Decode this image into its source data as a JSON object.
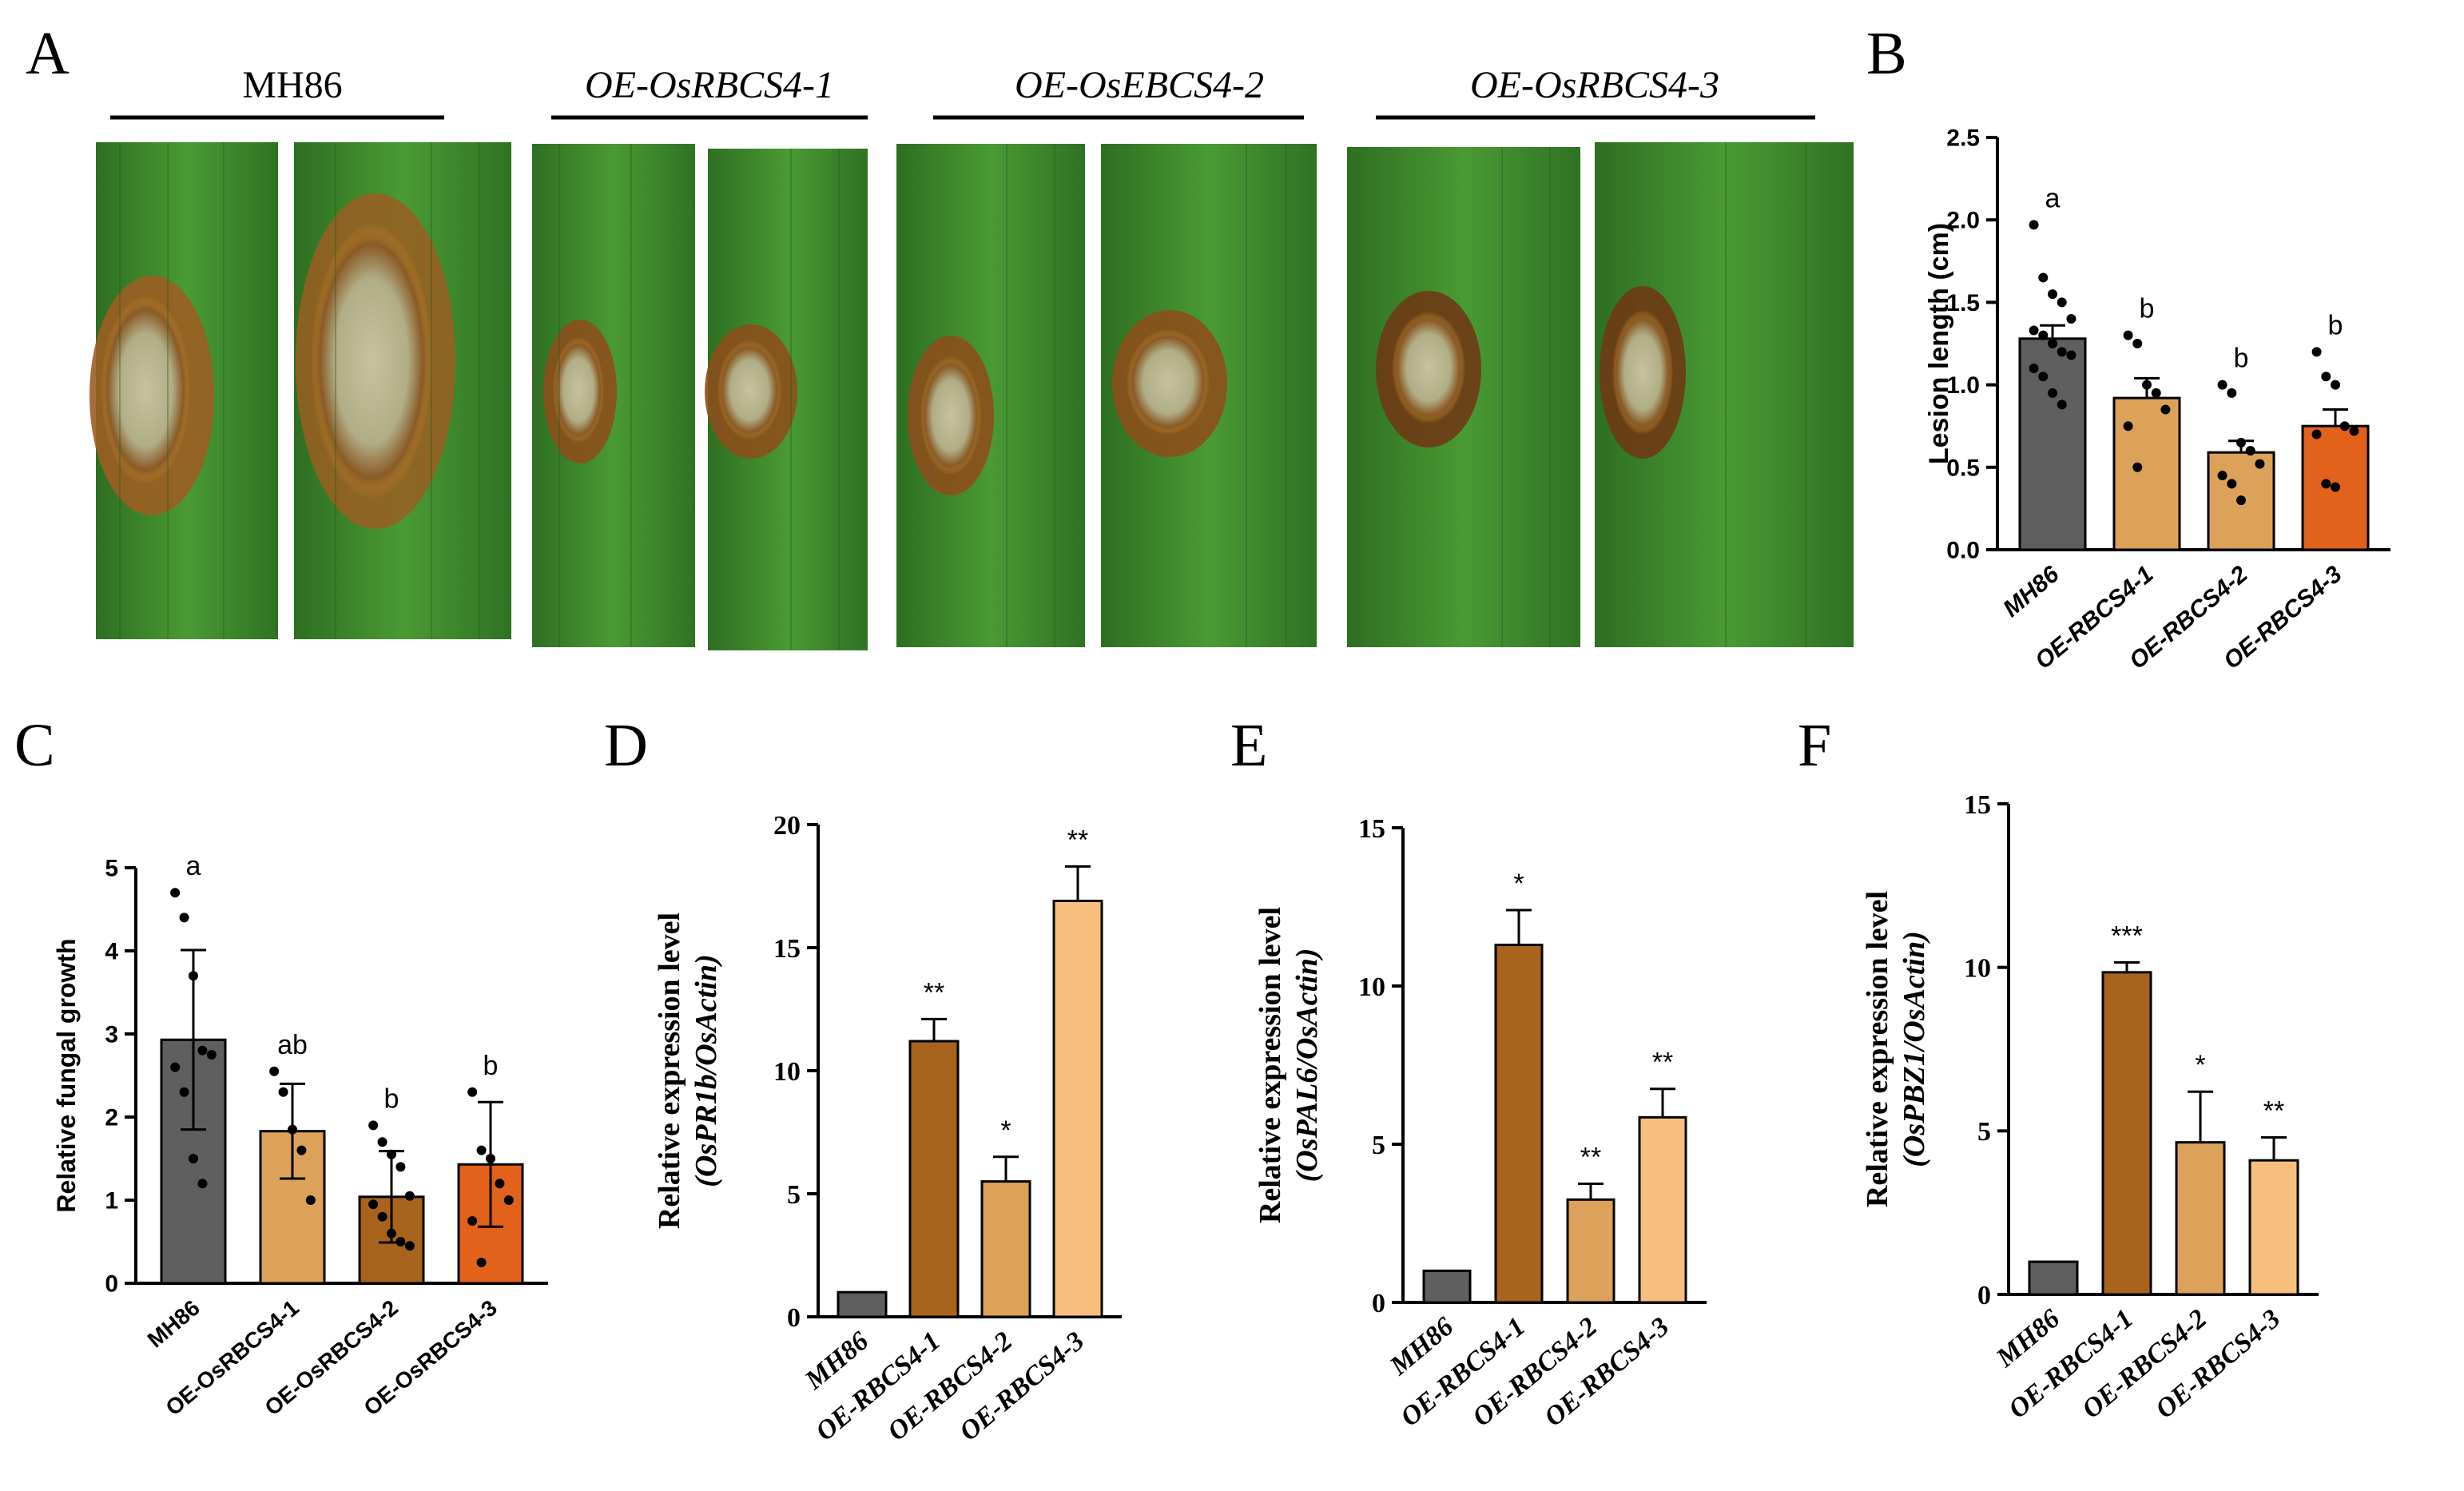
{
  "panel_A": {
    "letter": "A",
    "groups": [
      {
        "label": "MH86",
        "italic": false
      },
      {
        "label": "OE-OsRBCS4-1",
        "italic": true
      },
      {
        "label": "OE-OsEBCS4-2",
        "italic": true
      },
      {
        "label": "OE-OsRBCS4-3",
        "italic": true
      }
    ]
  },
  "colors": {
    "gray": "#5f5f5f",
    "light_orange": "#dca259",
    "orange": "#e2621b",
    "brown": "#a8641c",
    "peach": "#f6bf7e",
    "leaf": "#3f8a2c",
    "leaf_dark": "#2f6d21",
    "lesion": "#b9b48f",
    "lesion_rim": "#6b3c18"
  },
  "chart_data": [
    {
      "panel": "B",
      "type": "bar",
      "categories": [
        "MH86",
        "OE-RBCS4-1",
        "OE-RBCS4-2",
        "OE-RBCS4-3"
      ],
      "values": [
        1.28,
        0.92,
        0.59,
        0.75
      ],
      "errors": [
        0.08,
        0.12,
        0.07,
        0.1
      ],
      "bar_colors": [
        "#5f5f5f",
        "#dca259",
        "#dca259",
        "#e2621b"
      ],
      "annotations": [
        "a",
        "b",
        "b",
        "b"
      ],
      "points": [
        [
          1.97,
          1.65,
          1.55,
          1.5,
          1.4,
          1.33,
          1.3,
          1.25,
          1.2,
          1.18,
          1.1,
          1.05,
          0.95,
          0.88
        ],
        [
          1.3,
          1.25,
          1.0,
          0.95,
          0.85,
          0.75,
          0.5
        ],
        [
          1.0,
          0.95,
          0.65,
          0.6,
          0.52,
          0.45,
          0.4,
          0.3
        ],
        [
          1.2,
          1.05,
          1.0,
          0.75,
          0.72,
          0.7,
          0.4,
          0.38
        ]
      ],
      "ylabel": "Lesion length (cm)",
      "ylim": [
        0,
        2.5
      ],
      "yticks": [
        "0.0",
        "0.5",
        "1.0",
        "1.5",
        "2.0",
        "2.5"
      ]
    },
    {
      "panel": "C",
      "type": "bar",
      "categories": [
        "MH86",
        "OE-OsRBCS4-1",
        "OE-OsRBCS4-2",
        "OE-OsRBCS4-3"
      ],
      "values": [
        2.93,
        1.83,
        1.04,
        1.43
      ],
      "errors": [
        1.08,
        0.57,
        0.55,
        0.75
      ],
      "bar_colors": [
        "#5f5f5f",
        "#dca259",
        "#a8641c",
        "#e2621b"
      ],
      "annotations": [
        "a",
        "ab",
        "b",
        "b"
      ],
      "points": [
        [
          4.7,
          4.4,
          3.7,
          2.8,
          2.75,
          2.6,
          2.3,
          1.5,
          1.2
        ],
        [
          2.55,
          2.3,
          1.85,
          1.6,
          1.0
        ],
        [
          1.9,
          1.7,
          1.55,
          1.4,
          1.05,
          0.95,
          0.8,
          0.6,
          0.5,
          0.45
        ],
        [
          2.3,
          1.6,
          1.5,
          1.2,
          1.0,
          0.75,
          0.25
        ]
      ],
      "ylabel": "Relative fungal growth",
      "ylim": [
        0,
        5
      ],
      "yticks": [
        "0",
        "1",
        "2",
        "3",
        "4",
        "5"
      ]
    },
    {
      "panel": "D",
      "type": "bar",
      "categories": [
        "MH86",
        "OE-RBCS4-1",
        "OE-RBCS4-2",
        "OE-RBCS4-3"
      ],
      "values": [
        1.0,
        11.2,
        5.5,
        16.9
      ],
      "errors": [
        0,
        0.9,
        1.0,
        1.4
      ],
      "bar_colors": [
        "#5f5f5f",
        "#a8641c",
        "#dca259",
        "#f6bf7e"
      ],
      "annotations": [
        "",
        "**",
        "*",
        "**"
      ],
      "ylabel_line1": "Relative expression level",
      "ylabel_line2": "(OsPR1b/OsActin)",
      "ylim": [
        0,
        20
      ],
      "yticks": [
        "0",
        "5",
        "10",
        "15",
        "20"
      ]
    },
    {
      "panel": "E",
      "type": "bar",
      "categories": [
        "MH86",
        "OE-RBCS4-1",
        "OE-RBCS4-2",
        "OE-RBCS4-3"
      ],
      "values": [
        1.0,
        11.3,
        3.25,
        5.85
      ],
      "errors": [
        0,
        1.1,
        0.5,
        0.9
      ],
      "bar_colors": [
        "#5f5f5f",
        "#a8641c",
        "#dca259",
        "#f6bf7e"
      ],
      "annotations": [
        "",
        "*",
        "**",
        "**"
      ],
      "ylabel_line1": "Relative expression level",
      "ylabel_line2": "(OsPAL6/OsActin)",
      "ylim": [
        0,
        15
      ],
      "yticks": [
        "0",
        "5",
        "10",
        "15"
      ]
    },
    {
      "panel": "F",
      "type": "bar",
      "categories": [
        "MH86",
        "OE-RBCS4-1",
        "OE-RBCS4-2",
        "OE-RBCS4-3"
      ],
      "values": [
        1.0,
        9.85,
        4.65,
        4.1
      ],
      "errors": [
        0,
        0.3,
        1.55,
        0.7
      ],
      "bar_colors": [
        "#5f5f5f",
        "#a8641c",
        "#dca259",
        "#f6bf7e"
      ],
      "annotations": [
        "",
        "***",
        "*",
        "**"
      ],
      "ylabel_line1": "Relative expression level",
      "ylabel_line2": "(OsPBZ1/OsActin)",
      "ylim": [
        0,
        15
      ],
      "yticks": [
        "0",
        "5",
        "10",
        "15"
      ]
    }
  ]
}
